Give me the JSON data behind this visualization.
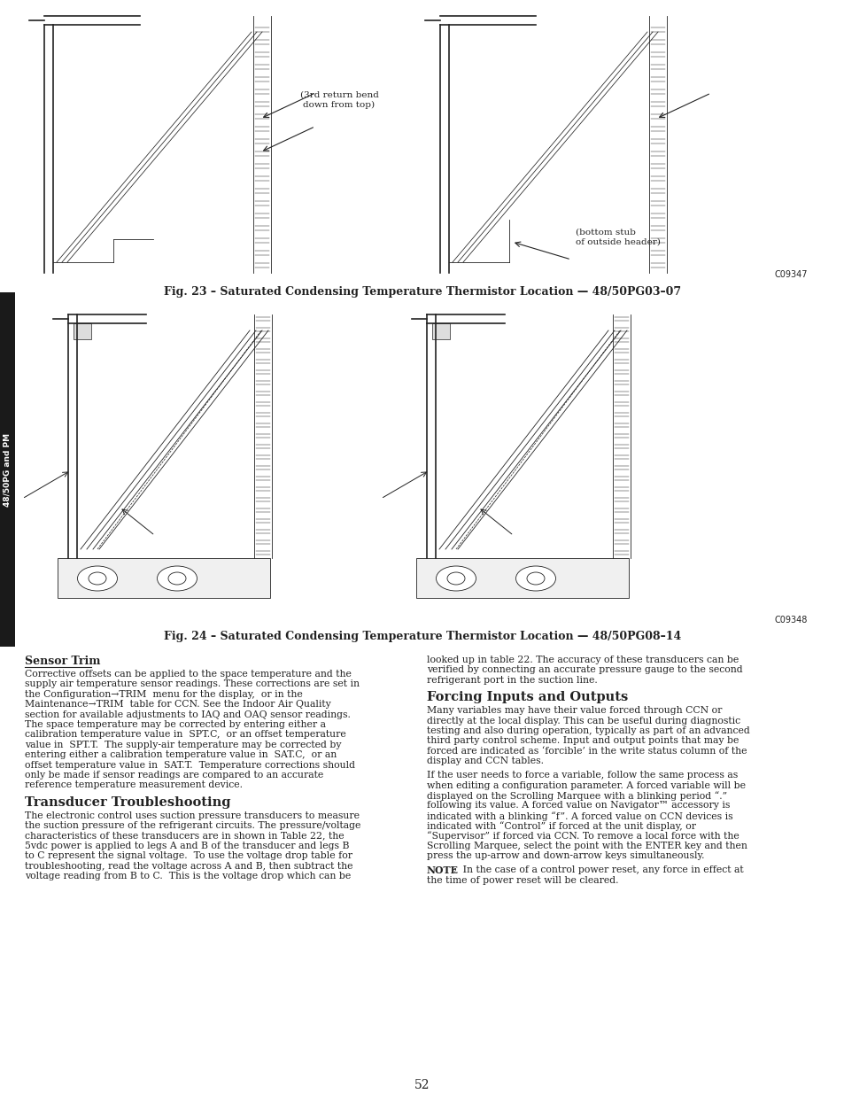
{
  "page_number": "52",
  "background_color": "#ffffff",
  "text_color": "#000000",
  "fig_width": 9.54,
  "fig_height": 12.35,
  "side_tab_text": "48/50PG and PM",
  "fig23_caption": "Fig. 23 – Saturated Condensing Temperature Thermistor Location — 48/50PG03–07",
  "fig24_caption": "Fig. 24 – Saturated Condensing Temperature Thermistor Location — 48/50PG08–14",
  "fig23_ref": "C09347",
  "fig24_ref": "C09348",
  "fig23_annotation1": "(3rd return bend\ndown from top)",
  "fig23_annotation2": "(bottom stub\nof outside header)",
  "section1_title": "Sensor Trim",
  "section2_title": "Transducer Troubleshooting",
  "section3_title": "Forcing Inputs and Outputs",
  "section1_lines": [
    "Corrective offsets can be applied to the space temperature and the",
    "supply air temperature sensor readings. These corrections are set in",
    "the Configuration→TRIM  menu for the display,  or in the",
    "Maintenance→TRIM  table for CCN. See the Indoor Air Quality",
    "section for available adjustments to IAQ and OAQ sensor readings.",
    "The space temperature may be corrected by entering either a",
    "calibration temperature value in  SPT.C,  or an offset temperature",
    "value in  SPT.T.  The supply-air temperature may be corrected by",
    "entering either a calibration temperature value in  SAT.C,  or an",
    "offset temperature value in  SAT.T.  Temperature corrections should",
    "only be made if sensor readings are compared to an accurate",
    "reference temperature measurement device."
  ],
  "section2_lines": [
    "The electronic control uses suction pressure transducers to measure",
    "the suction pressure of the refrigerant circuits. The pressure/voltage",
    "characteristics of these transducers are in shown in Table 22, the",
    "5vdc power is applied to legs A and B of the transducer and legs B",
    "to C represent the signal voltage.  To use the voltage drop table for",
    "troubleshooting, read the voltage across A and B, then subtract the",
    "voltage reading from B to C.  This is the voltage drop which can be"
  ],
  "right_col_top_lines": [
    "looked up in table 22. The accuracy of these transducers can be",
    "verified by connecting an accurate pressure gauge to the second",
    "refrigerant port in the suction line."
  ],
  "section3_lines_a": [
    "Many variables may have their value forced through CCN or",
    "directly at the local display. This can be useful during diagnostic",
    "testing and also during operation, typically as part of an advanced",
    "third party control scheme. Input and output points that may be",
    "forced are indicated as ‘forcible’ in the write status column of the",
    "display and CCN tables."
  ],
  "section3_lines_b": [
    "If the user needs to force a variable, follow the same process as",
    "when editing a configuration parameter. A forced variable will be",
    "displayed on the Scrolling Marquee with a blinking period “.”",
    "following its value. A forced value on Navigator™ accessory is",
    "indicated with a blinking “f”. A forced value on CCN devices is",
    "indicated with “Control” if forced at the unit display, or",
    "“Supervisor” if forced via CCN. To remove a local force with the",
    "Scrolling Marquee, select the point with the ENTER key and then",
    "press the up-arrow and down-arrow keys simultaneously."
  ],
  "note_bold": "NOTE",
  "note_rest": ":  In the case of a control power reset, any force in effect at",
  "note_line2": "the time of power reset will be cleared."
}
